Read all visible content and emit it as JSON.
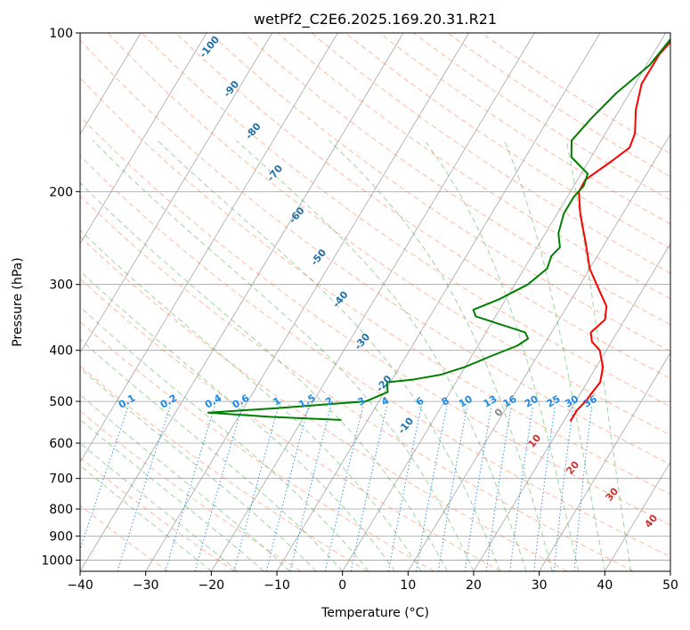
{
  "chart_data": {
    "type": "line",
    "title": "wetPf2_C2E6.2025.169.20.31.R21",
    "xlabel": "Temperature (°C)",
    "ylabel": "Pressure (hPa)",
    "xlim": [
      -40,
      50
    ],
    "ylim": [
      1050,
      100
    ],
    "y_scale": "log",
    "grid": true,
    "x_ticks": [
      -40,
      -30,
      -20,
      -10,
      0,
      10,
      20,
      30,
      40,
      50
    ],
    "y_ticks": [
      100,
      200,
      300,
      400,
      500,
      600,
      700,
      800,
      900,
      1000
    ],
    "series": [
      {
        "color": "#ff0000",
        "points": [
          [
            2.0,
            100
          ],
          [
            1.0,
            110
          ],
          [
            1.0,
            125
          ],
          [
            2.5,
            140
          ],
          [
            4.5,
            155
          ],
          [
            5.0,
            165
          ],
          [
            3.5,
            175
          ],
          [
            1.2,
            190
          ],
          [
            1.3,
            200
          ],
          [
            3.5,
            220
          ],
          [
            7.0,
            250
          ],
          [
            10.0,
            280
          ],
          [
            12.5,
            300
          ],
          [
            16.0,
            330
          ],
          [
            17.0,
            350
          ],
          [
            16.0,
            370
          ],
          [
            17.0,
            385
          ],
          [
            19.0,
            400
          ],
          [
            21.0,
            430
          ],
          [
            22.0,
            460
          ],
          [
            21.7,
            480
          ],
          [
            21.5,
            500
          ],
          [
            21.0,
            520
          ],
          [
            21.0,
            545
          ]
        ]
      },
      {
        "color": "#008000",
        "points": [
          [
            1.5,
            100
          ],
          [
            0.5,
            115
          ],
          [
            -2.0,
            130
          ],
          [
            -3.5,
            145
          ],
          [
            -4.5,
            160
          ],
          [
            -3.0,
            172
          ],
          [
            1.0,
            185
          ],
          [
            1.5,
            195
          ],
          [
            1.0,
            205
          ],
          [
            1.0,
            220
          ],
          [
            2.0,
            240
          ],
          [
            3.5,
            255
          ],
          [
            3.0,
            265
          ],
          [
            3.5,
            280
          ],
          [
            2.0,
            300
          ],
          [
            -1.0,
            320
          ],
          [
            -4.0,
            335
          ],
          [
            -3.0,
            345
          ],
          [
            2.5,
            360
          ],
          [
            6.0,
            370
          ],
          [
            7.0,
            380
          ],
          [
            6.0,
            392
          ],
          [
            3.0,
            410
          ],
          [
            0.0,
            430
          ],
          [
            -3.0,
            445
          ],
          [
            -7.0,
            455
          ],
          [
            -10.5,
            460
          ],
          [
            -10.0,
            470
          ],
          [
            -9.5,
            480
          ],
          [
            -12.0,
            500
          ],
          [
            -25.0,
            515
          ],
          [
            -35.0,
            525
          ],
          [
            -25.0,
            535
          ],
          [
            -14.0,
            542
          ]
        ]
      }
    ],
    "mixing_ratio_labels": [
      "0.1",
      "0.2",
      "0.4",
      "0.6",
      "1",
      "1.5",
      "2",
      "3",
      "4",
      "6",
      "8",
      "10",
      "13",
      "16",
      "20",
      "25",
      "30",
      "36"
    ],
    "mixing_ratio_values": [
      0.1,
      0.2,
      0.4,
      0.6,
      1,
      1.5,
      2,
      3,
      4,
      6,
      8,
      10,
      13,
      16,
      20,
      25,
      30,
      36
    ],
    "dry_adiabat_labels": [
      "-100",
      "-90",
      "-80",
      "-70",
      "-60",
      "-50",
      "-40",
      "-30",
      "-20",
      "-10"
    ],
    "moist_adiabat_labels": [
      "0",
      "10",
      "20",
      "30",
      "40"
    ],
    "colors": {
      "temperature": "#ff0000",
      "dewpoint": "#008000",
      "dry_adiabat": "#ff7f50",
      "moist_adiabat": "#2ca02c",
      "mixing_ratio": "#1e88e5",
      "isotherm": "#808080",
      "isobar": "#a0a0a0"
    }
  }
}
